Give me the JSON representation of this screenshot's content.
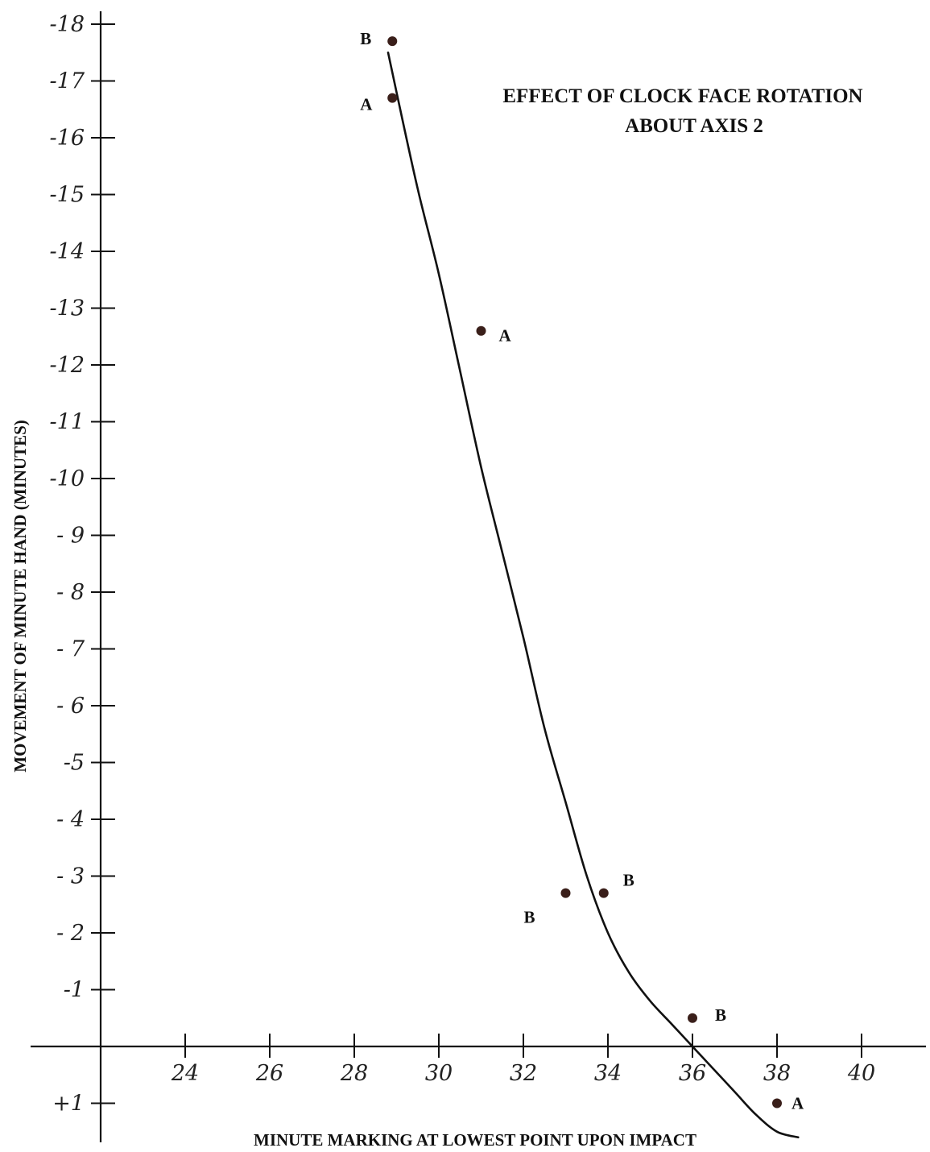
{
  "chart_data": {
    "type": "scatter",
    "title": "EFFECT OF CLOCK FACE ROTATION",
    "subtitle": "ABOUT AXIS 2",
    "xlabel": "MINUTE MARKING AT LOWEST POINT UPON IMPACT",
    "ylabel": "MOVEMENT OF MINUTE HAND (MINUTES)",
    "xlim": [
      22,
      41.5
    ],
    "ylim": [
      -18.5,
      1.7
    ],
    "x_ticks": [
      "24",
      "26",
      "28",
      "30",
      "32",
      "34",
      "36",
      "38",
      "40"
    ],
    "y_ticks": [
      "-18",
      "-17",
      "-16",
      "-15",
      "-14",
      "-13",
      "-12",
      "-11",
      "-10",
      "- 9",
      "- 8",
      "- 7",
      "- 6",
      "-5",
      "- 4",
      "- 3",
      "- 2",
      "-1",
      "+1"
    ],
    "y_tick_values": [
      -18,
      -17,
      -16,
      -15,
      -14,
      -13,
      -12,
      -11,
      -10,
      -9,
      -8,
      -7,
      -6,
      -5,
      -4,
      -3,
      -2,
      -1,
      1
    ],
    "grid": false,
    "points": [
      {
        "label": "B",
        "x": 28.9,
        "y": -17.7
      },
      {
        "label": "A",
        "x": 28.9,
        "y": -16.7
      },
      {
        "label": "A",
        "x": 31.0,
        "y": -12.6
      },
      {
        "label": "B",
        "x": 33.0,
        "y": -2.7
      },
      {
        "label": "B",
        "x": 33.9,
        "y": -2.7
      },
      {
        "label": "B",
        "x": 36.0,
        "y": -0.5
      },
      {
        "label": "A",
        "x": 38.0,
        "y": 1.0
      }
    ],
    "fit_curve": {
      "x": [
        28.8,
        29.0,
        29.5,
        30.0,
        30.5,
        31.0,
        31.5,
        32.0,
        32.5,
        33.0,
        33.5,
        34.0,
        34.5,
        35.0,
        35.5,
        36.0,
        36.5,
        37.0,
        37.5,
        38.0,
        38.5
      ],
      "y": [
        -17.5,
        -16.8,
        -15.1,
        -13.6,
        -11.9,
        -10.2,
        -8.7,
        -7.2,
        -5.6,
        -4.3,
        -3.0,
        -2.0,
        -1.3,
        -0.8,
        -0.4,
        0.0,
        0.4,
        0.8,
        1.2,
        1.5,
        1.6
      ]
    }
  }
}
